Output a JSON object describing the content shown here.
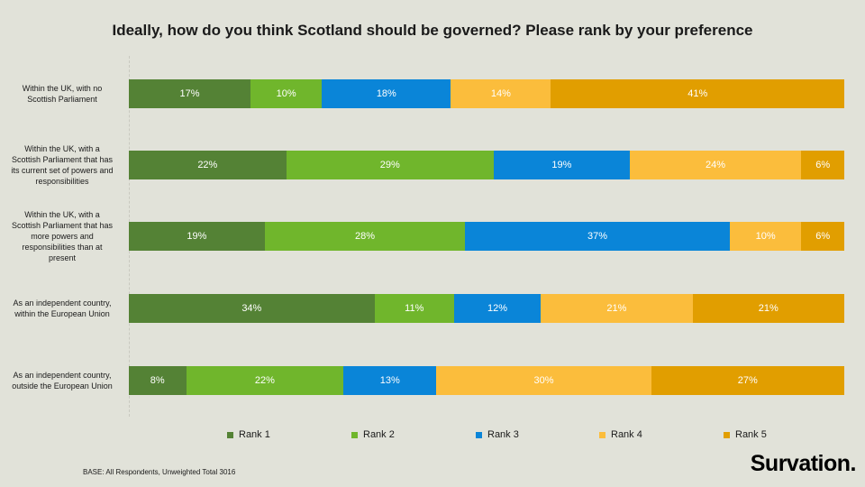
{
  "chart_data": {
    "type": "bar",
    "orientation": "horizontal",
    "stacked": true,
    "title": "Ideally, how do you think Scotland should be governed? Please rank by your preference",
    "categories": [
      "Within the UK, with no Scottish Parliament",
      "Within the UK, with a Scottish Parliament that has its current set of powers and responsibilities",
      "Within the UK, with a Scottish Parliament that has more powers and responsibilities than at present",
      "As an independent country, within the European Union",
      "As an independent country, outside the European Union"
    ],
    "series": [
      {
        "name": "Rank 1",
        "color": "#548235",
        "values": [
          17,
          22,
          19,
          34,
          8
        ]
      },
      {
        "name": "Rank 2",
        "color": "#70b62c",
        "values": [
          10,
          29,
          28,
          11,
          22
        ]
      },
      {
        "name": "Rank 3",
        "color": "#0a85d8",
        "values": [
          18,
          19,
          37,
          12,
          13
        ]
      },
      {
        "name": "Rank 4",
        "color": "#fbbd3c",
        "values": [
          14,
          24,
          10,
          21,
          30
        ]
      },
      {
        "name": "Rank 5",
        "color": "#e19e00",
        "values": [
          41,
          6,
          6,
          21,
          27
        ]
      }
    ],
    "value_suffix": "%",
    "legend_position": "bottom",
    "grid": false
  },
  "footer": {
    "base_note": "BASE: All Respondents, Unweighted Total 3016",
    "brand": "Survation."
  }
}
